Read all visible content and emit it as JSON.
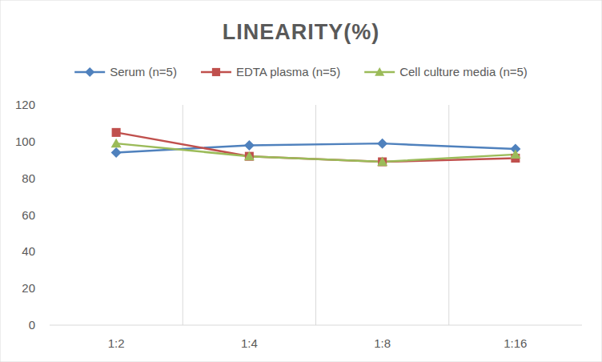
{
  "chart_data": {
    "type": "line",
    "title": "LINEARITY(%)",
    "categories": [
      "1:2",
      "1:4",
      "1:8",
      "1:16"
    ],
    "series": [
      {
        "name": "Serum (n=5)",
        "color": "#4f81bd",
        "marker": "diamond",
        "values": [
          94,
          98,
          99,
          96
        ]
      },
      {
        "name": "EDTA plasma (n=5)",
        "color": "#c0504d",
        "marker": "square",
        "values": [
          105,
          92,
          89,
          91
        ]
      },
      {
        "name": "Cell culture media (n=5)",
        "color": "#9bbb59",
        "marker": "triangle",
        "values": [
          99,
          92,
          89,
          93
        ]
      }
    ],
    "ylim": [
      0,
      120
    ],
    "yticks": [
      0,
      20,
      40,
      60,
      80,
      100,
      120
    ],
    "grid": true,
    "legend": "top"
  }
}
